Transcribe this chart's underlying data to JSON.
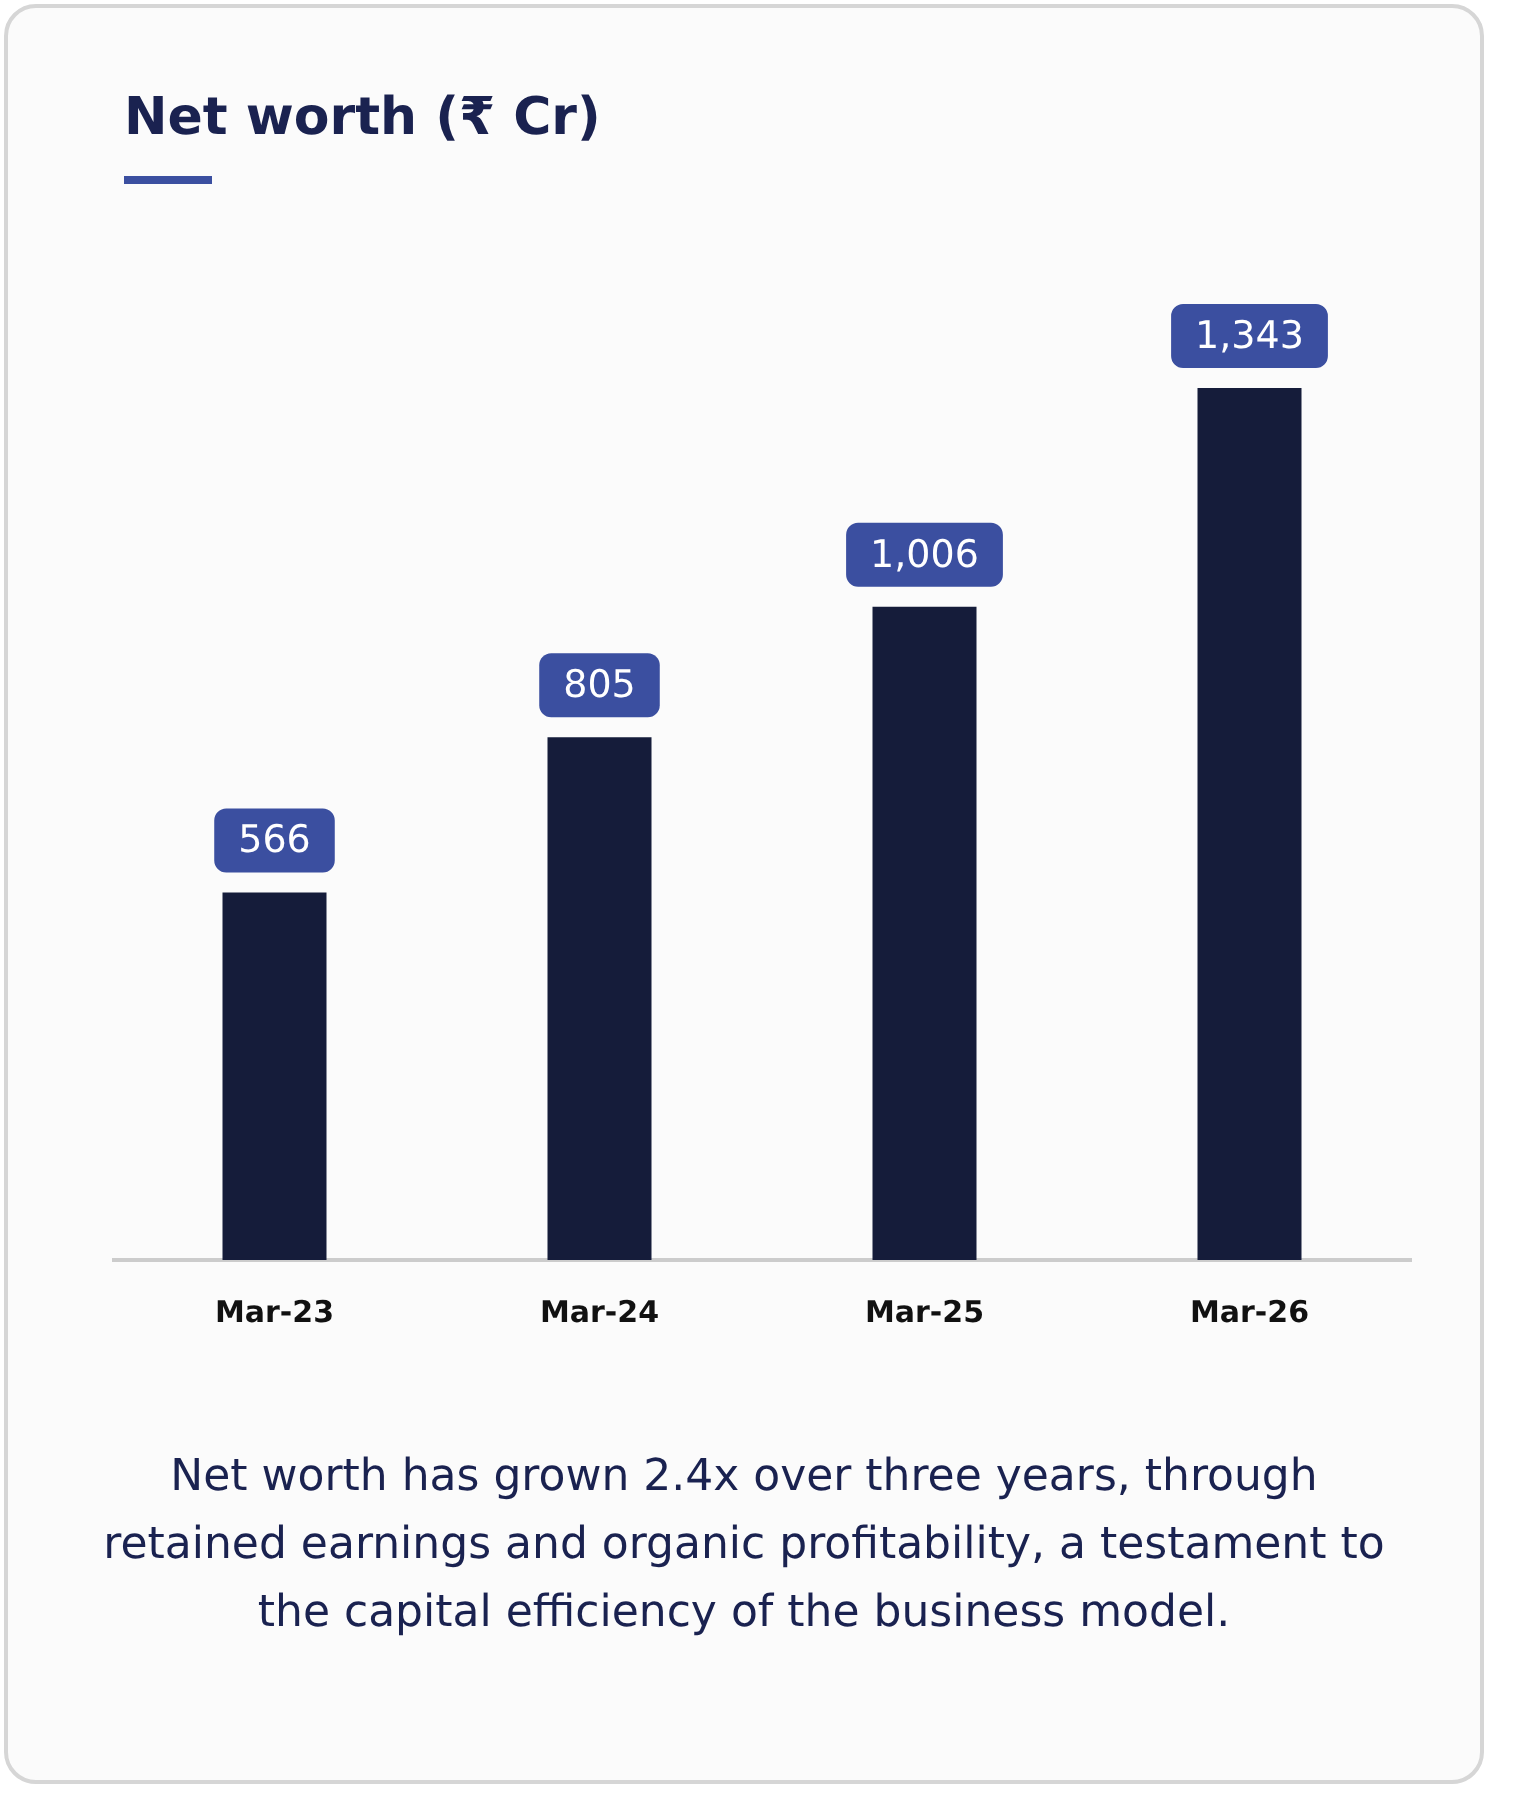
{
  "chart_data": {
    "type": "bar",
    "title": "Net worth (₹ Cr)",
    "categories": [
      "Mar-23",
      "Mar-24",
      "Mar-25",
      "Mar-26"
    ],
    "values": [
      566,
      805,
      1006,
      1343
    ],
    "value_labels": [
      "566",
      "805",
      "1,006",
      "1,343"
    ],
    "color": "#151c3a",
    "grid": false,
    "legend": false,
    "annotations": [
      "Net worth has grown 2.4x over three years, through retained earnings and organic profitability, a testament to the capital efficiency of the business model."
    ]
  }
}
